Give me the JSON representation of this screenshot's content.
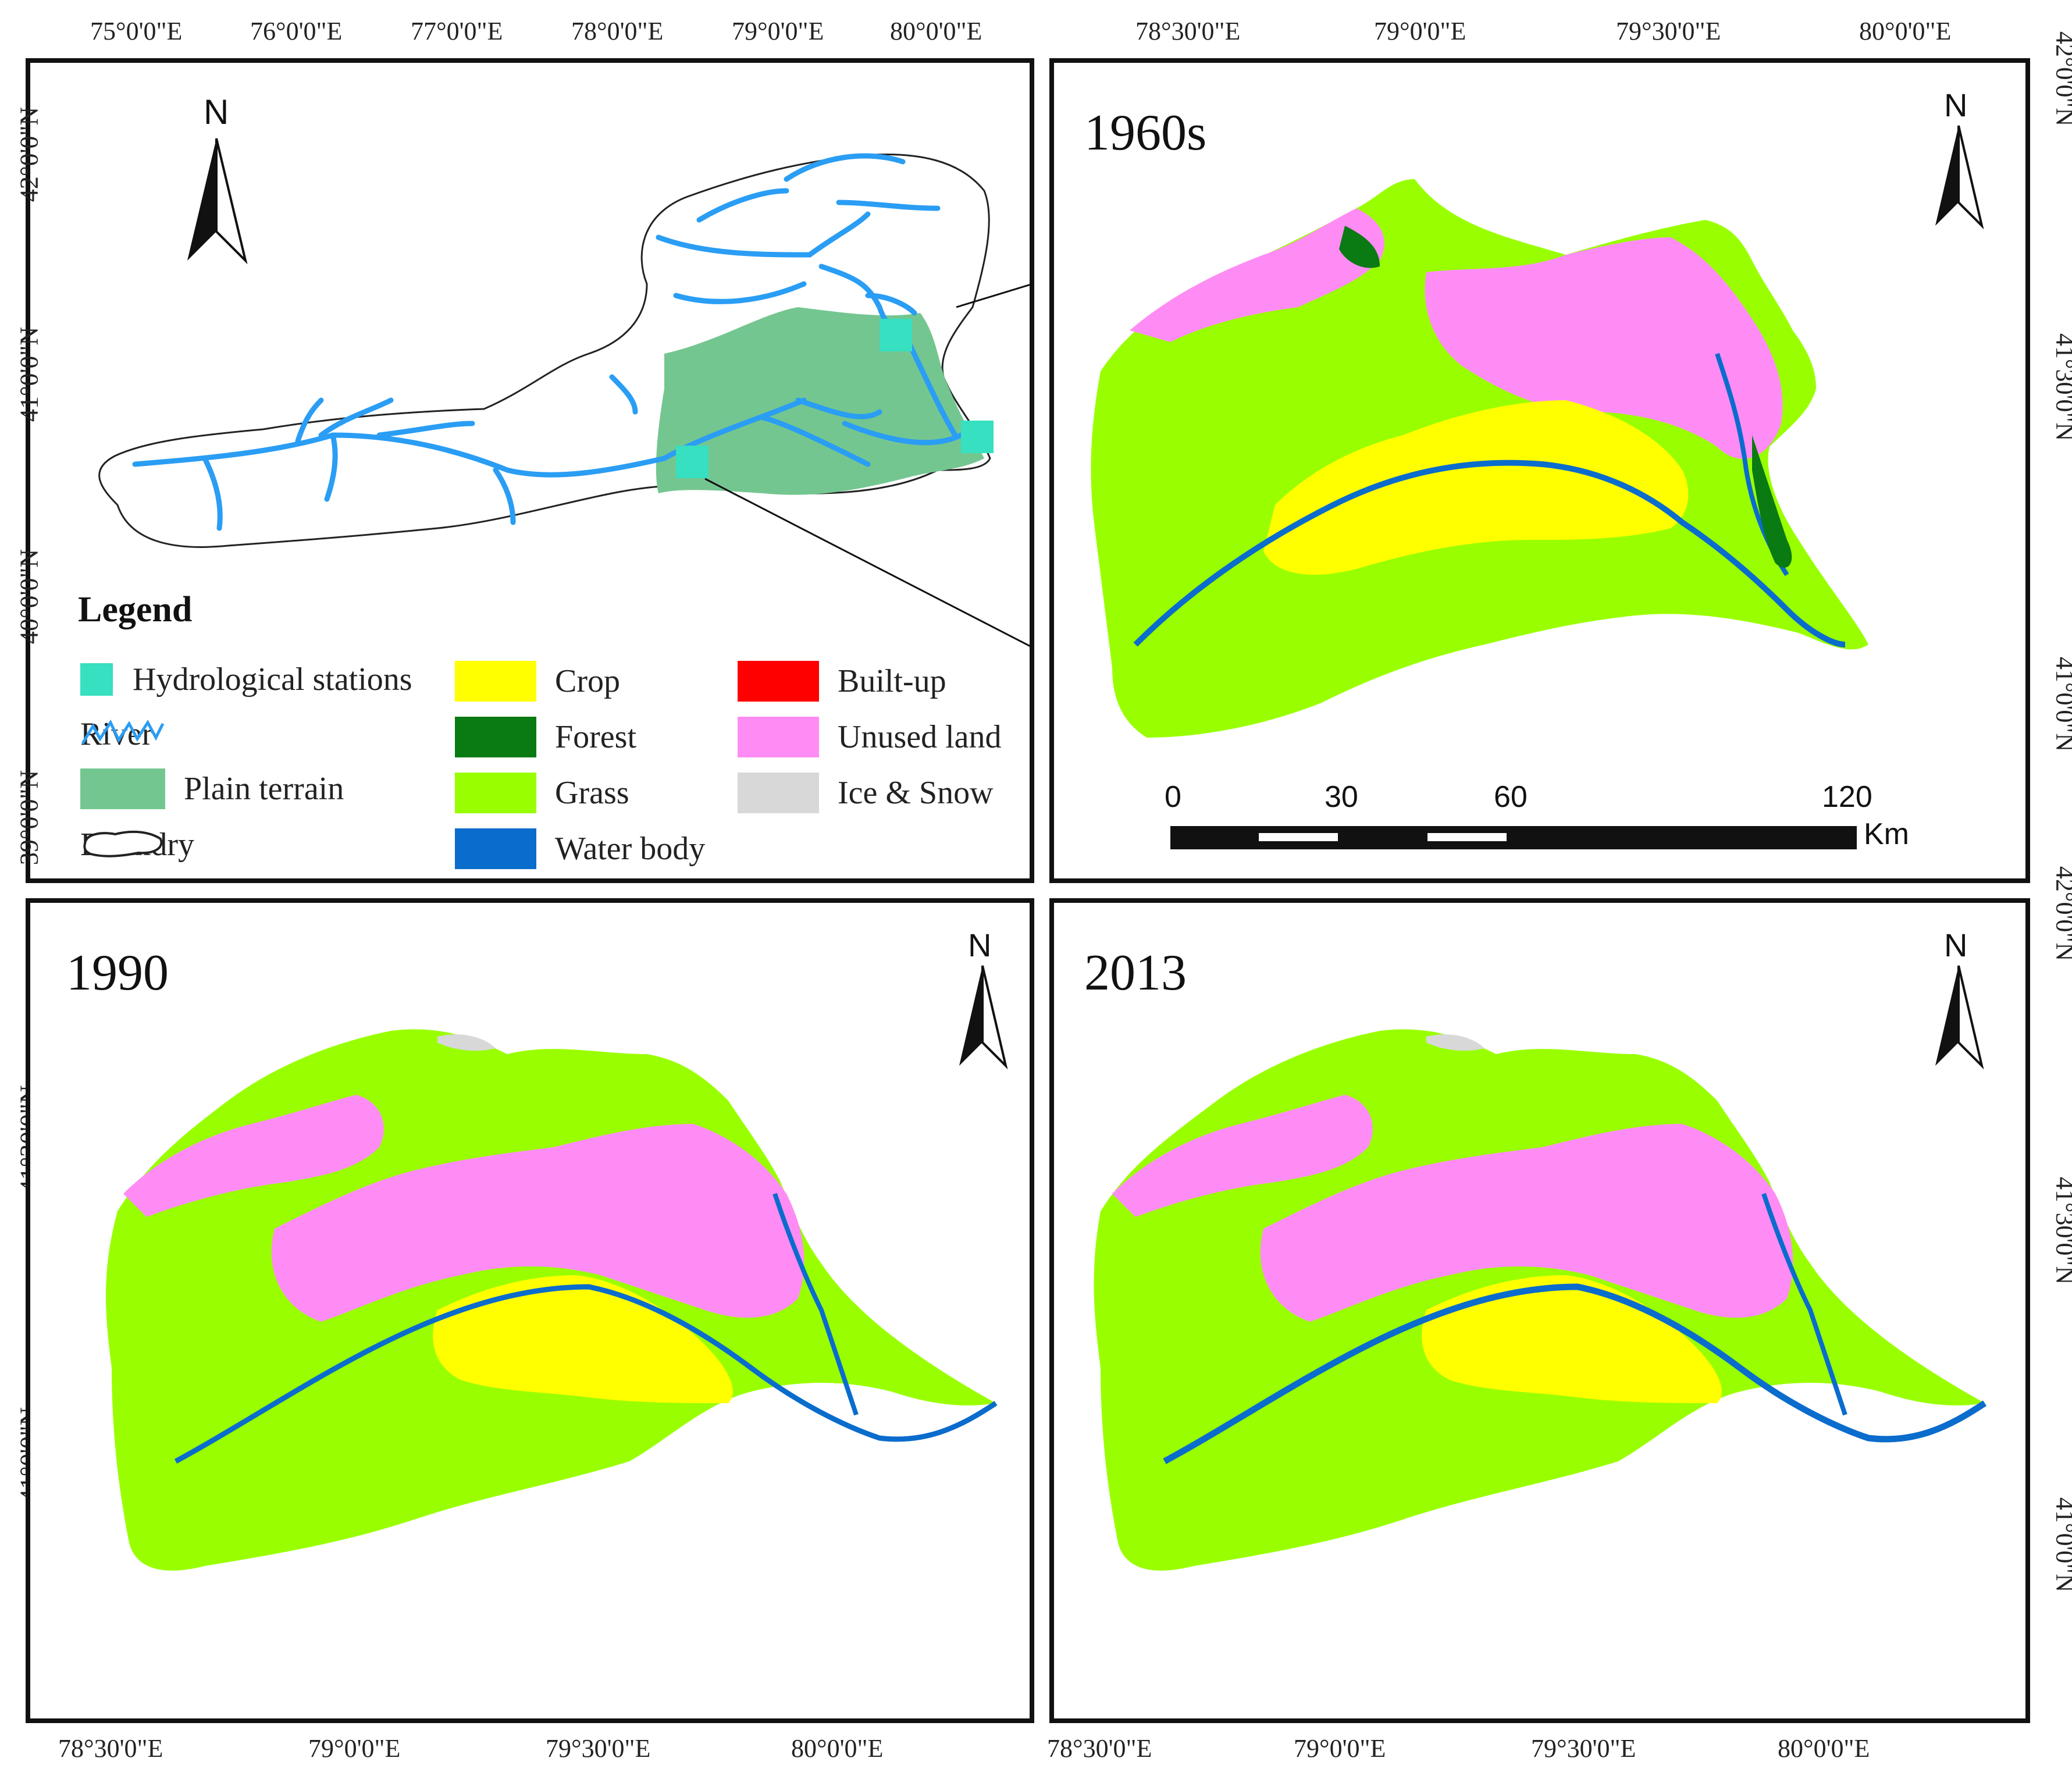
{
  "panels": {
    "overview": {},
    "p1960s": {
      "year": "1960s"
    },
    "p1990": {
      "year": "1990"
    },
    "p2013": {
      "year": "2013"
    }
  },
  "north_label": "N",
  "overview_axes": {
    "top_ticks": [
      "75°0'0\"E",
      "76°0'0\"E",
      "77°0'0\"E",
      "78°0'0\"E",
      "79°0'0\"E",
      "80°0'0\"E"
    ],
    "left_ticks": [
      "42°0'0\"N",
      "41°0'0\"N",
      "40°0'0\"N",
      "39°0'0\"N"
    ]
  },
  "detail_axes": {
    "top_ticks": [
      "78°30'0\"E",
      "79°0'0\"E",
      "79°30'0\"E",
      "80°0'0\"E"
    ],
    "bottom_ticks": [
      "78°30'0\"E",
      "79°0'0\"E",
      "79°30'0\"E",
      "80°0'0\"E"
    ],
    "right_top_ticks": [
      "42°0'0\"N",
      "41°30'0\"N",
      "41°0'0\"N"
    ],
    "right_bottom_ticks": [
      "42°0'0\"N",
      "41°30'0\"N",
      "41°0'0\"N"
    ],
    "left_bottom_ticks": [
      "41°30'0\"N",
      "41°0'0\"N"
    ]
  },
  "legend": {
    "title": "Legend",
    "items": [
      {
        "label": "Hydrological stations",
        "color": "#36e0c0"
      },
      {
        "label": "River",
        "color": "#2a9df4"
      },
      {
        "label": "Plain terrain",
        "color": "#74c690"
      },
      {
        "label": "Boundry",
        "color": "#ffffff"
      },
      {
        "label": "Crop",
        "color": "#ffff00"
      },
      {
        "label": "Forest",
        "color": "#0a7a12"
      },
      {
        "label": "Grass",
        "color": "#99ff00"
      },
      {
        "label": "Water body",
        "color": "#0a6ccc"
      },
      {
        "label": "Built-up",
        "color": "#ff0000"
      },
      {
        "label": "Unused land",
        "color": "#ff8cf4"
      },
      {
        "label": "Ice & Snow",
        "color": "#d8d8d8"
      }
    ]
  },
  "scale_bar": {
    "ticks": [
      "0",
      "30",
      "60",
      "120"
    ],
    "unit": "Km"
  }
}
